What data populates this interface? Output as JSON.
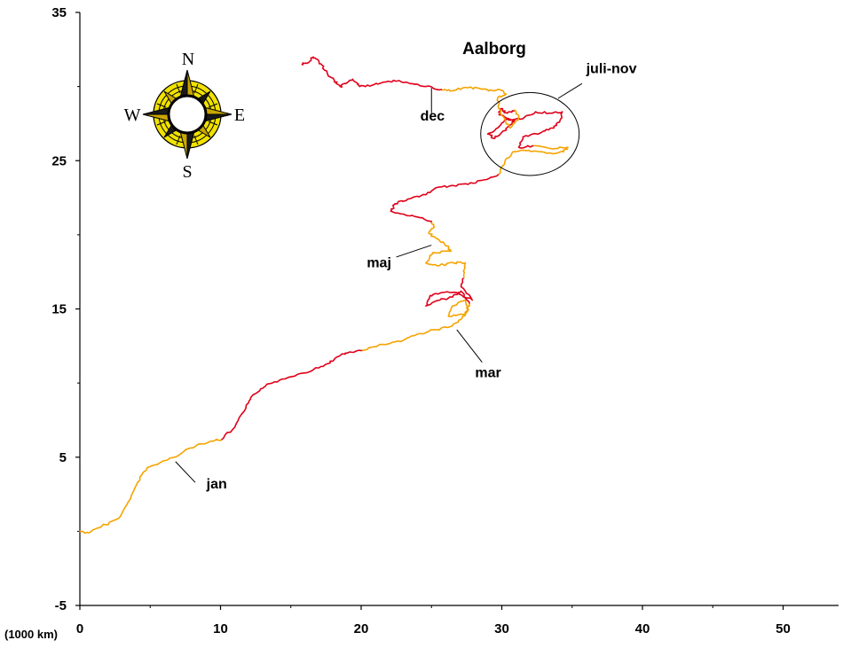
{
  "chart_data": {
    "type": "line",
    "title": "Aalborg",
    "xlabel": "(1000 km)",
    "ylabel": "",
    "xlim": [
      0,
      55
    ],
    "ylim": [
      -5,
      35
    ],
    "x_ticks": [
      0,
      10,
      20,
      30,
      40,
      50
    ],
    "y_ticks": [
      -5,
      5,
      15,
      25,
      35
    ],
    "grid": false,
    "colors": {
      "orange": "#f5a300",
      "red": "#e0001a"
    },
    "series": [
      {
        "color": "orange",
        "points": [
          [
            0,
            0
          ],
          [
            0.6,
            -0.1
          ],
          [
            1.5,
            0.3
          ],
          [
            2.8,
            0.9
          ],
          [
            3.6,
            2.2
          ],
          [
            4.1,
            3.3
          ],
          [
            4.8,
            4.3
          ],
          [
            6.2,
            4.8
          ],
          [
            7.4,
            5.4
          ],
          [
            8.3,
            5.8
          ],
          [
            9.4,
            6.1
          ],
          [
            10.1,
            6.2
          ]
        ]
      },
      {
        "color": "red",
        "points": [
          [
            10.1,
            6.2
          ],
          [
            11,
            7
          ],
          [
            11.8,
            8.3
          ],
          [
            12.3,
            9.2
          ],
          [
            13.2,
            9.8
          ],
          [
            14.2,
            10.2
          ],
          [
            15.5,
            10.6
          ],
          [
            16.6,
            10.9
          ],
          [
            17.6,
            11.3
          ],
          [
            18.4,
            11.8
          ],
          [
            19.2,
            12.1
          ],
          [
            20.1,
            12.2
          ]
        ]
      },
      {
        "color": "orange",
        "points": [
          [
            20.1,
            12.2
          ],
          [
            21.6,
            12.6
          ],
          [
            22.8,
            12.8
          ],
          [
            24,
            13.3
          ],
          [
            25.2,
            13.6
          ],
          [
            26.3,
            13.8
          ],
          [
            27.1,
            14.3
          ],
          [
            27.6,
            14.9
          ],
          [
            27.4,
            15.6
          ],
          [
            26.5,
            15.2
          ],
          [
            26.2,
            14.5
          ],
          [
            27.4,
            14.6
          ],
          [
            27.7,
            15.4
          ]
        ]
      },
      {
        "color": "red",
        "points": [
          [
            27.7,
            15.4
          ],
          [
            27.1,
            16.2
          ],
          [
            26.5,
            15.8
          ],
          [
            25.6,
            15.6
          ],
          [
            24.6,
            15.2
          ],
          [
            24.9,
            15.9
          ],
          [
            25.7,
            16.1
          ],
          [
            26.8,
            16.1
          ],
          [
            27.9,
            15.6
          ],
          [
            27.1,
            16.5
          ],
          [
            27.3,
            17.1
          ]
        ]
      },
      {
        "color": "orange",
        "points": [
          [
            27.3,
            17.1
          ],
          [
            27.4,
            18.1
          ],
          [
            26.6,
            18.1
          ],
          [
            25.4,
            17.9
          ],
          [
            24.6,
            18.1
          ],
          [
            25.1,
            18.8
          ],
          [
            26.4,
            18.9
          ],
          [
            25.9,
            19.4
          ],
          [
            25.3,
            19.8
          ],
          [
            24.8,
            20.1
          ],
          [
            25.2,
            20.5
          ],
          [
            25,
            20.9
          ]
        ]
      },
      {
        "color": "red",
        "points": [
          [
            25,
            20.9
          ],
          [
            24,
            21.2
          ],
          [
            23,
            21.4
          ],
          [
            22.1,
            21.6
          ],
          [
            22.4,
            22.1
          ],
          [
            23.3,
            22.4
          ],
          [
            24.6,
            22.7
          ],
          [
            25.2,
            23.1
          ],
          [
            26.3,
            23.3
          ],
          [
            27.6,
            23.4
          ],
          [
            28.7,
            23.7
          ],
          [
            29.8,
            24.1
          ]
        ]
      },
      {
        "color": "orange",
        "points": [
          [
            29.8,
            24.1
          ],
          [
            30.2,
            24.9
          ],
          [
            30.8,
            25.6
          ],
          [
            31.9,
            25.7
          ],
          [
            33.2,
            25.5
          ],
          [
            34.4,
            25.6
          ],
          [
            34.7,
            25.9
          ],
          [
            33.6,
            25.8
          ],
          [
            32.2,
            26
          ]
        ]
      },
      {
        "color": "red",
        "points": [
          [
            32.2,
            26
          ],
          [
            31.2,
            25.9
          ],
          [
            31.5,
            26.6
          ],
          [
            32.8,
            26.9
          ],
          [
            33.6,
            27.2
          ],
          [
            34.1,
            27.6
          ],
          [
            34.3,
            28.3
          ],
          [
            33.4,
            28.2
          ],
          [
            32.4,
            28.3
          ],
          [
            31.3,
            27.8
          ],
          [
            30.4,
            27.8
          ],
          [
            29.7,
            27.2
          ],
          [
            29,
            26.8
          ],
          [
            29.5,
            26.5
          ],
          [
            30.1,
            27
          ],
          [
            30.6,
            27.4
          ],
          [
            30.9,
            27.7
          ],
          [
            29.8,
            28.1
          ],
          [
            29.9,
            28.5
          ],
          [
            30.4,
            28.2
          ],
          [
            30.9,
            28.4
          ]
        ]
      },
      {
        "color": "orange",
        "points": [
          [
            30.9,
            28.4
          ],
          [
            31.2,
            27.9
          ],
          [
            30.6,
            27.2
          ],
          [
            29.9,
            28.2
          ],
          [
            29.7,
            29.2
          ],
          [
            30.3,
            29.5
          ],
          [
            29.8,
            29.8
          ],
          [
            29.1,
            29.7
          ],
          [
            28.3,
            29.9
          ],
          [
            27.2,
            29.9
          ],
          [
            26.3,
            29.7
          ],
          [
            25.7,
            29.8
          ]
        ]
      },
      {
        "color": "red",
        "points": [
          [
            25.7,
            29.8
          ],
          [
            24.6,
            30
          ],
          [
            23.6,
            30.2
          ],
          [
            22.7,
            30.4
          ],
          [
            21.6,
            30.3
          ],
          [
            20.8,
            30.1
          ],
          [
            19.9,
            30
          ],
          [
            19.4,
            30.5
          ],
          [
            18.9,
            30.2
          ],
          [
            18.5,
            30
          ],
          [
            18.1,
            30.4
          ],
          [
            17.4,
            31.1
          ],
          [
            17,
            31.7
          ],
          [
            16.6,
            32
          ],
          [
            16.2,
            31.6
          ],
          [
            15.8,
            31.5
          ]
        ]
      }
    ],
    "annotations": [
      {
        "label": "jan",
        "x": 9.0,
        "y": 2.9,
        "line_from": [
          8.2,
          3.3
        ],
        "line_to": [
          6.8,
          4.7
        ]
      },
      {
        "label": "mar",
        "x": 28.1,
        "y": 10.4,
        "line_from": [
          28.6,
          11.4
        ],
        "line_to": [
          26.8,
          13.6
        ]
      },
      {
        "label": "maj",
        "x": 20.4,
        "y": 17.8,
        "line_from": [
          22.5,
          18.5
        ],
        "line_to": [
          25.0,
          19.3
        ]
      },
      {
        "label": "dec",
        "x": 24.2,
        "y": 27.7,
        "line_from": [
          25.0,
          28.2
        ],
        "line_to": [
          25.0,
          29.9
        ]
      },
      {
        "label": "juli-nov",
        "x": 36.0,
        "y": 30.9,
        "line_from": [
          35.7,
          30.2
        ],
        "line_to": [
          34.0,
          29.2
        ]
      }
    ],
    "ellipse": {
      "cx": 32.0,
      "cy": 26.8,
      "rx": 3.5,
      "ry": 2.8
    },
    "compass": {
      "north": "N",
      "south": "S",
      "east": "E",
      "west": "W"
    }
  }
}
